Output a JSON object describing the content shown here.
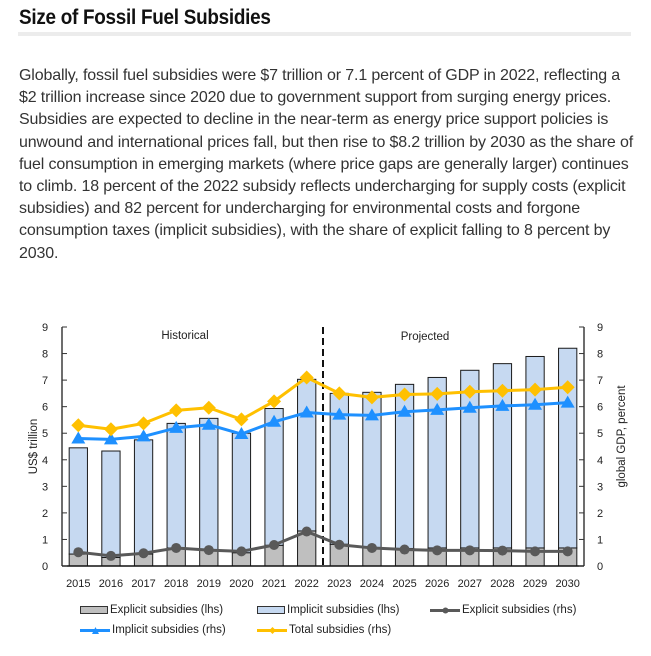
{
  "header": {
    "title": "Size of Fossil Fuel Subsidies"
  },
  "body_text": "Globally, fossil fuel subsidies were $7 trillion or 7.1 percent of GDP in 2022, reflecting a $2 trillion increase since 2020 due to government support from surging energy prices. Subsidies are expected to decline in the near-term as energy price support policies is unwound and international prices fall, but then rise to $8.2 trillion by 2030 as the share of fuel consumption in emerging markets (where price gaps are generally larger) continues to climb. 18 percent of the 2022 subsidy reflects undercharging for supply costs (explicit subsidies) and 82 percent for undercharging for environmental costs and forgone consumption taxes (implicit subsidies), with the share of explicit falling to 8 percent by 2030.",
  "chart_data": {
    "type": "bar",
    "title": "",
    "categories": [
      "2015",
      "2016",
      "2017",
      "2018",
      "2019",
      "2020",
      "2021",
      "2022",
      "2023",
      "2024",
      "2025",
      "2026",
      "2027",
      "2028",
      "2029",
      "2030"
    ],
    "ylabel": "US$ trillion",
    "y2label": "global GDP, percent",
    "ylim": [
      0,
      9
    ],
    "y2lim": [
      0,
      9
    ],
    "yticks": [
      0,
      1,
      2,
      3,
      4,
      5,
      6,
      7,
      8,
      9
    ],
    "y2ticks": [
      0,
      1,
      2,
      3,
      4,
      5,
      6,
      7,
      8,
      9
    ],
    "grid": false,
    "divider_after": "2022",
    "annotations": {
      "historical": "Historical",
      "projected": "Projected"
    },
    "series": [
      {
        "name": "Explicit subsidies (lhs)",
        "kind": "bar",
        "axis": "left",
        "color": "#bfbfbf",
        "values": [
          0.45,
          0.32,
          0.45,
          0.68,
          0.6,
          0.5,
          0.78,
          1.32,
          0.82,
          0.68,
          0.66,
          0.68,
          0.68,
          0.68,
          0.68,
          0.68
        ]
      },
      {
        "name": "Implicit subsidies (lhs)",
        "kind": "bar",
        "axis": "left",
        "color": "#c6d9f1",
        "stacked_on": "Explicit subsidies (lhs)",
        "values": [
          4.0,
          4.01,
          4.3,
          4.69,
          4.96,
          4.5,
          5.15,
          5.71,
          5.68,
          5.86,
          6.18,
          6.42,
          6.69,
          6.94,
          7.21,
          7.52
        ]
      },
      {
        "name": "Explicit subsidies (rhs)",
        "kind": "line",
        "axis": "right",
        "color": "#595959",
        "marker": "circle",
        "values": [
          0.52,
          0.38,
          0.48,
          0.68,
          0.6,
          0.55,
          0.79,
          1.3,
          0.8,
          0.68,
          0.62,
          0.59,
          0.59,
          0.58,
          0.55,
          0.55
        ]
      },
      {
        "name": "Implicit subsidies (rhs)",
        "kind": "line",
        "axis": "right",
        "color": "#1e90ff",
        "marker": "triangle",
        "values": [
          4.8,
          4.77,
          4.88,
          5.2,
          5.32,
          4.97,
          5.43,
          5.78,
          5.7,
          5.67,
          5.81,
          5.88,
          5.96,
          6.03,
          6.07,
          6.15
        ]
      },
      {
        "name": "Total subsidies (rhs)",
        "kind": "line",
        "axis": "right",
        "color": "#ffc000",
        "marker": "diamond",
        "values": [
          5.3,
          5.15,
          5.37,
          5.86,
          5.96,
          5.52,
          6.2,
          7.1,
          6.5,
          6.35,
          6.46,
          6.48,
          6.56,
          6.6,
          6.64,
          6.73
        ]
      }
    ],
    "legend_position": "bottom"
  }
}
